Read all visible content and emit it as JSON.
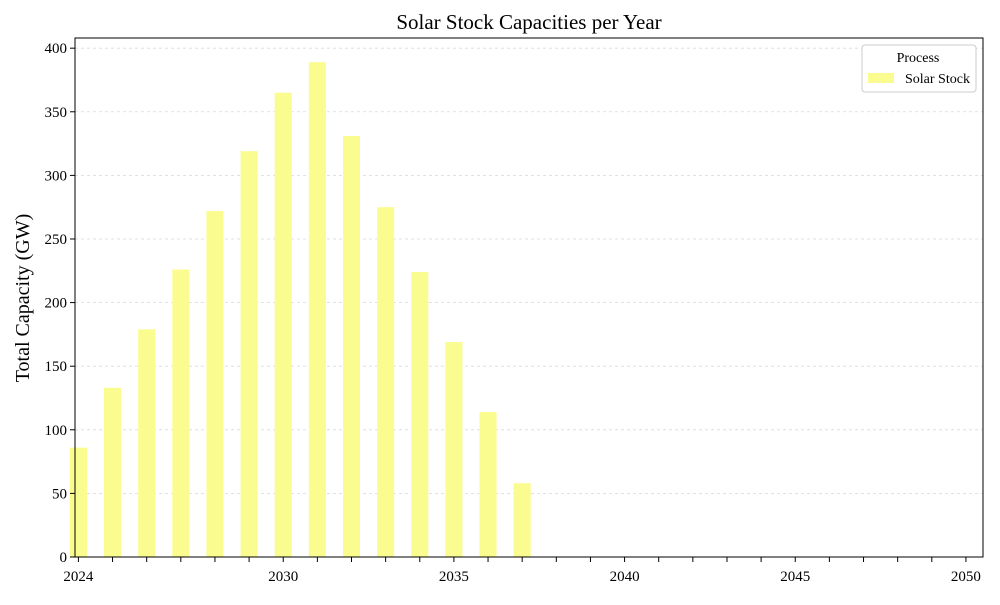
{
  "chart_data": {
    "type": "bar",
    "title": "Solar Stock Capacities per Year",
    "xlabel": "",
    "ylabel": "Total Capacity (GW)",
    "x": [
      2024,
      2025,
      2026,
      2027,
      2028,
      2029,
      2030,
      2031,
      2032,
      2033,
      2034,
      2035,
      2036,
      2037,
      2038,
      2039,
      2040,
      2041,
      2042,
      2043,
      2044,
      2045,
      2046,
      2047,
      2048,
      2049,
      2050
    ],
    "series": [
      {
        "name": "Solar Stock",
        "color": "#fbfc8f",
        "values": [
          86,
          133,
          179,
          226,
          272,
          319,
          365,
          389,
          331,
          275,
          224,
          169,
          114,
          58,
          0,
          0,
          0,
          0,
          0,
          0,
          0,
          0,
          0,
          0,
          0,
          0,
          0
        ]
      }
    ],
    "xticks": [
      2024,
      2030,
      2035,
      2040,
      2045,
      2050
    ],
    "yticks": [
      0,
      50,
      100,
      150,
      200,
      250,
      300,
      350,
      400
    ],
    "xlim": [
      2023.9,
      2050.5
    ],
    "ylim": [
      0,
      408
    ],
    "grid": "horizontal dashed",
    "legend": {
      "title": "Process",
      "position": "top-right"
    }
  }
}
